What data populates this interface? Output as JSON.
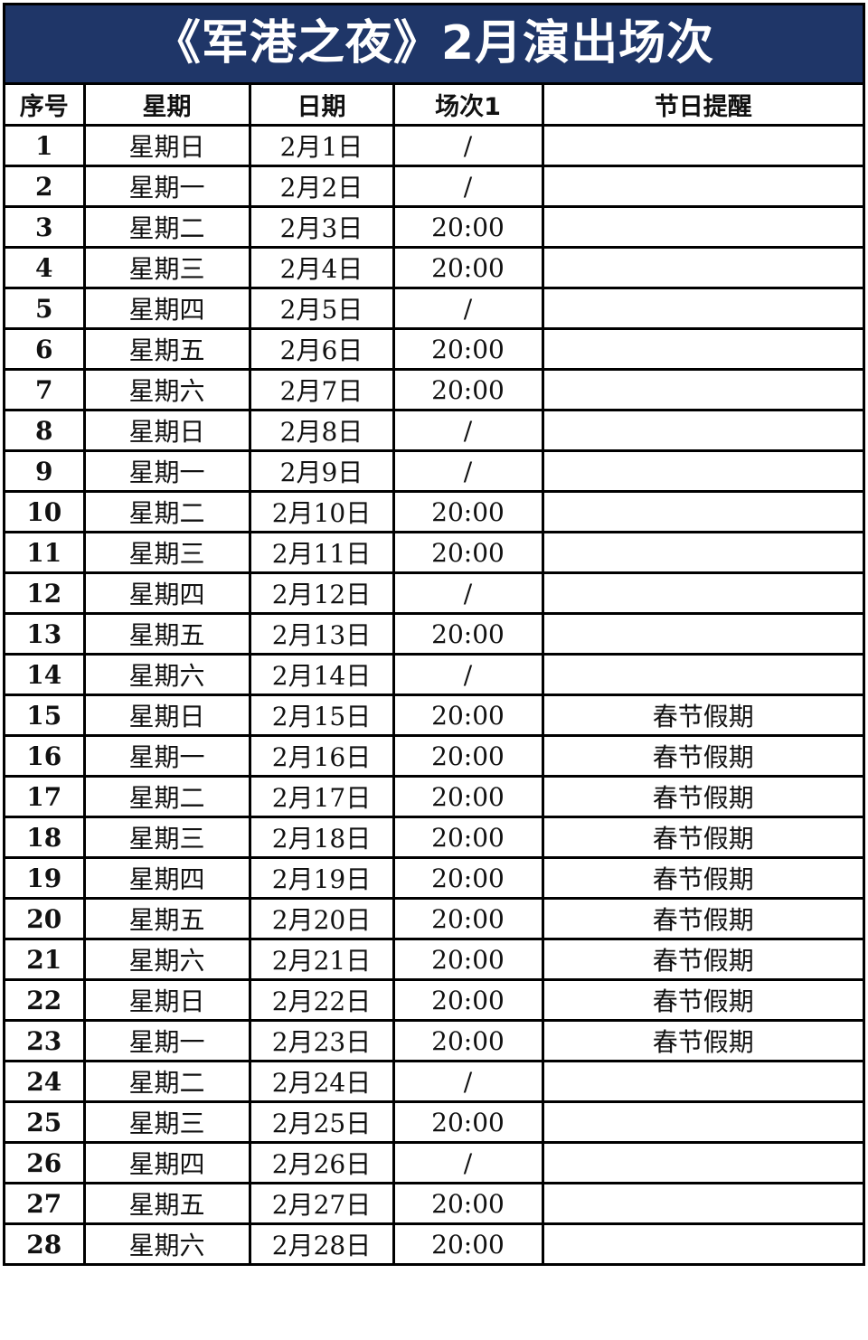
{
  "title": "《军港之夜》2月演出场次",
  "headers": [
    "序号",
    "星期",
    "日期",
    "场次1",
    "节日提醒"
  ],
  "rows": [
    [
      "1",
      "星期日",
      "2月1日",
      "/",
      ""
    ],
    [
      "2",
      "星期一",
      "2月2日",
      "/",
      ""
    ],
    [
      "3",
      "星期二",
      "2月3日",
      "20:00",
      ""
    ],
    [
      "4",
      "星期三",
      "2月4日",
      "20:00",
      ""
    ],
    [
      "5",
      "星期四",
      "2月5日",
      "/",
      ""
    ],
    [
      "6",
      "星期五",
      "2月6日",
      "20:00",
      ""
    ],
    [
      "7",
      "星期六",
      "2月7日",
      "20:00",
      ""
    ],
    [
      "8",
      "星期日",
      "2月8日",
      "/",
      ""
    ],
    [
      "9",
      "星期一",
      "2月9日",
      "/",
      ""
    ],
    [
      "10",
      "星期二",
      "2月10日",
      "20:00",
      ""
    ],
    [
      "11",
      "星期三",
      "2月11日",
      "20:00",
      ""
    ],
    [
      "12",
      "星期四",
      "2月12日",
      "/",
      ""
    ],
    [
      "13",
      "星期五",
      "2月13日",
      "20:00",
      ""
    ],
    [
      "14",
      "星期六",
      "2月14日",
      "/",
      ""
    ],
    [
      "15",
      "星期日",
      "2月15日",
      "20:00",
      "春节假期"
    ],
    [
      "16",
      "星期一",
      "2月16日",
      "20:00",
      "春节假期"
    ],
    [
      "17",
      "星期二",
      "2月17日",
      "20:00",
      "春节假期"
    ],
    [
      "18",
      "星期三",
      "2月18日",
      "20:00",
      "春节假期"
    ],
    [
      "19",
      "星期四",
      "2月19日",
      "20:00",
      "春节假期"
    ],
    [
      "20",
      "星期五",
      "2月20日",
      "20:00",
      "春节假期"
    ],
    [
      "21",
      "星期六",
      "2月21日",
      "20:00",
      "春节假期"
    ],
    [
      "22",
      "星期日",
      "2月22日",
      "20:00",
      "春节假期"
    ],
    [
      "23",
      "星期一",
      "2月23日",
      "20:00",
      "春节假期"
    ],
    [
      "24",
      "星期二",
      "2月24日",
      "/",
      ""
    ],
    [
      "25",
      "星期三",
      "2月25日",
      "20:00",
      ""
    ],
    [
      "26",
      "星期四",
      "2月26日",
      "/",
      ""
    ],
    [
      "27",
      "星期五",
      "2月27日",
      "20:00",
      ""
    ],
    [
      "28",
      "星期六",
      "2月28日",
      "20:00",
      ""
    ]
  ],
  "colors": {
    "title_bg": "#1f3668",
    "title_text": "#ffffff"
  }
}
